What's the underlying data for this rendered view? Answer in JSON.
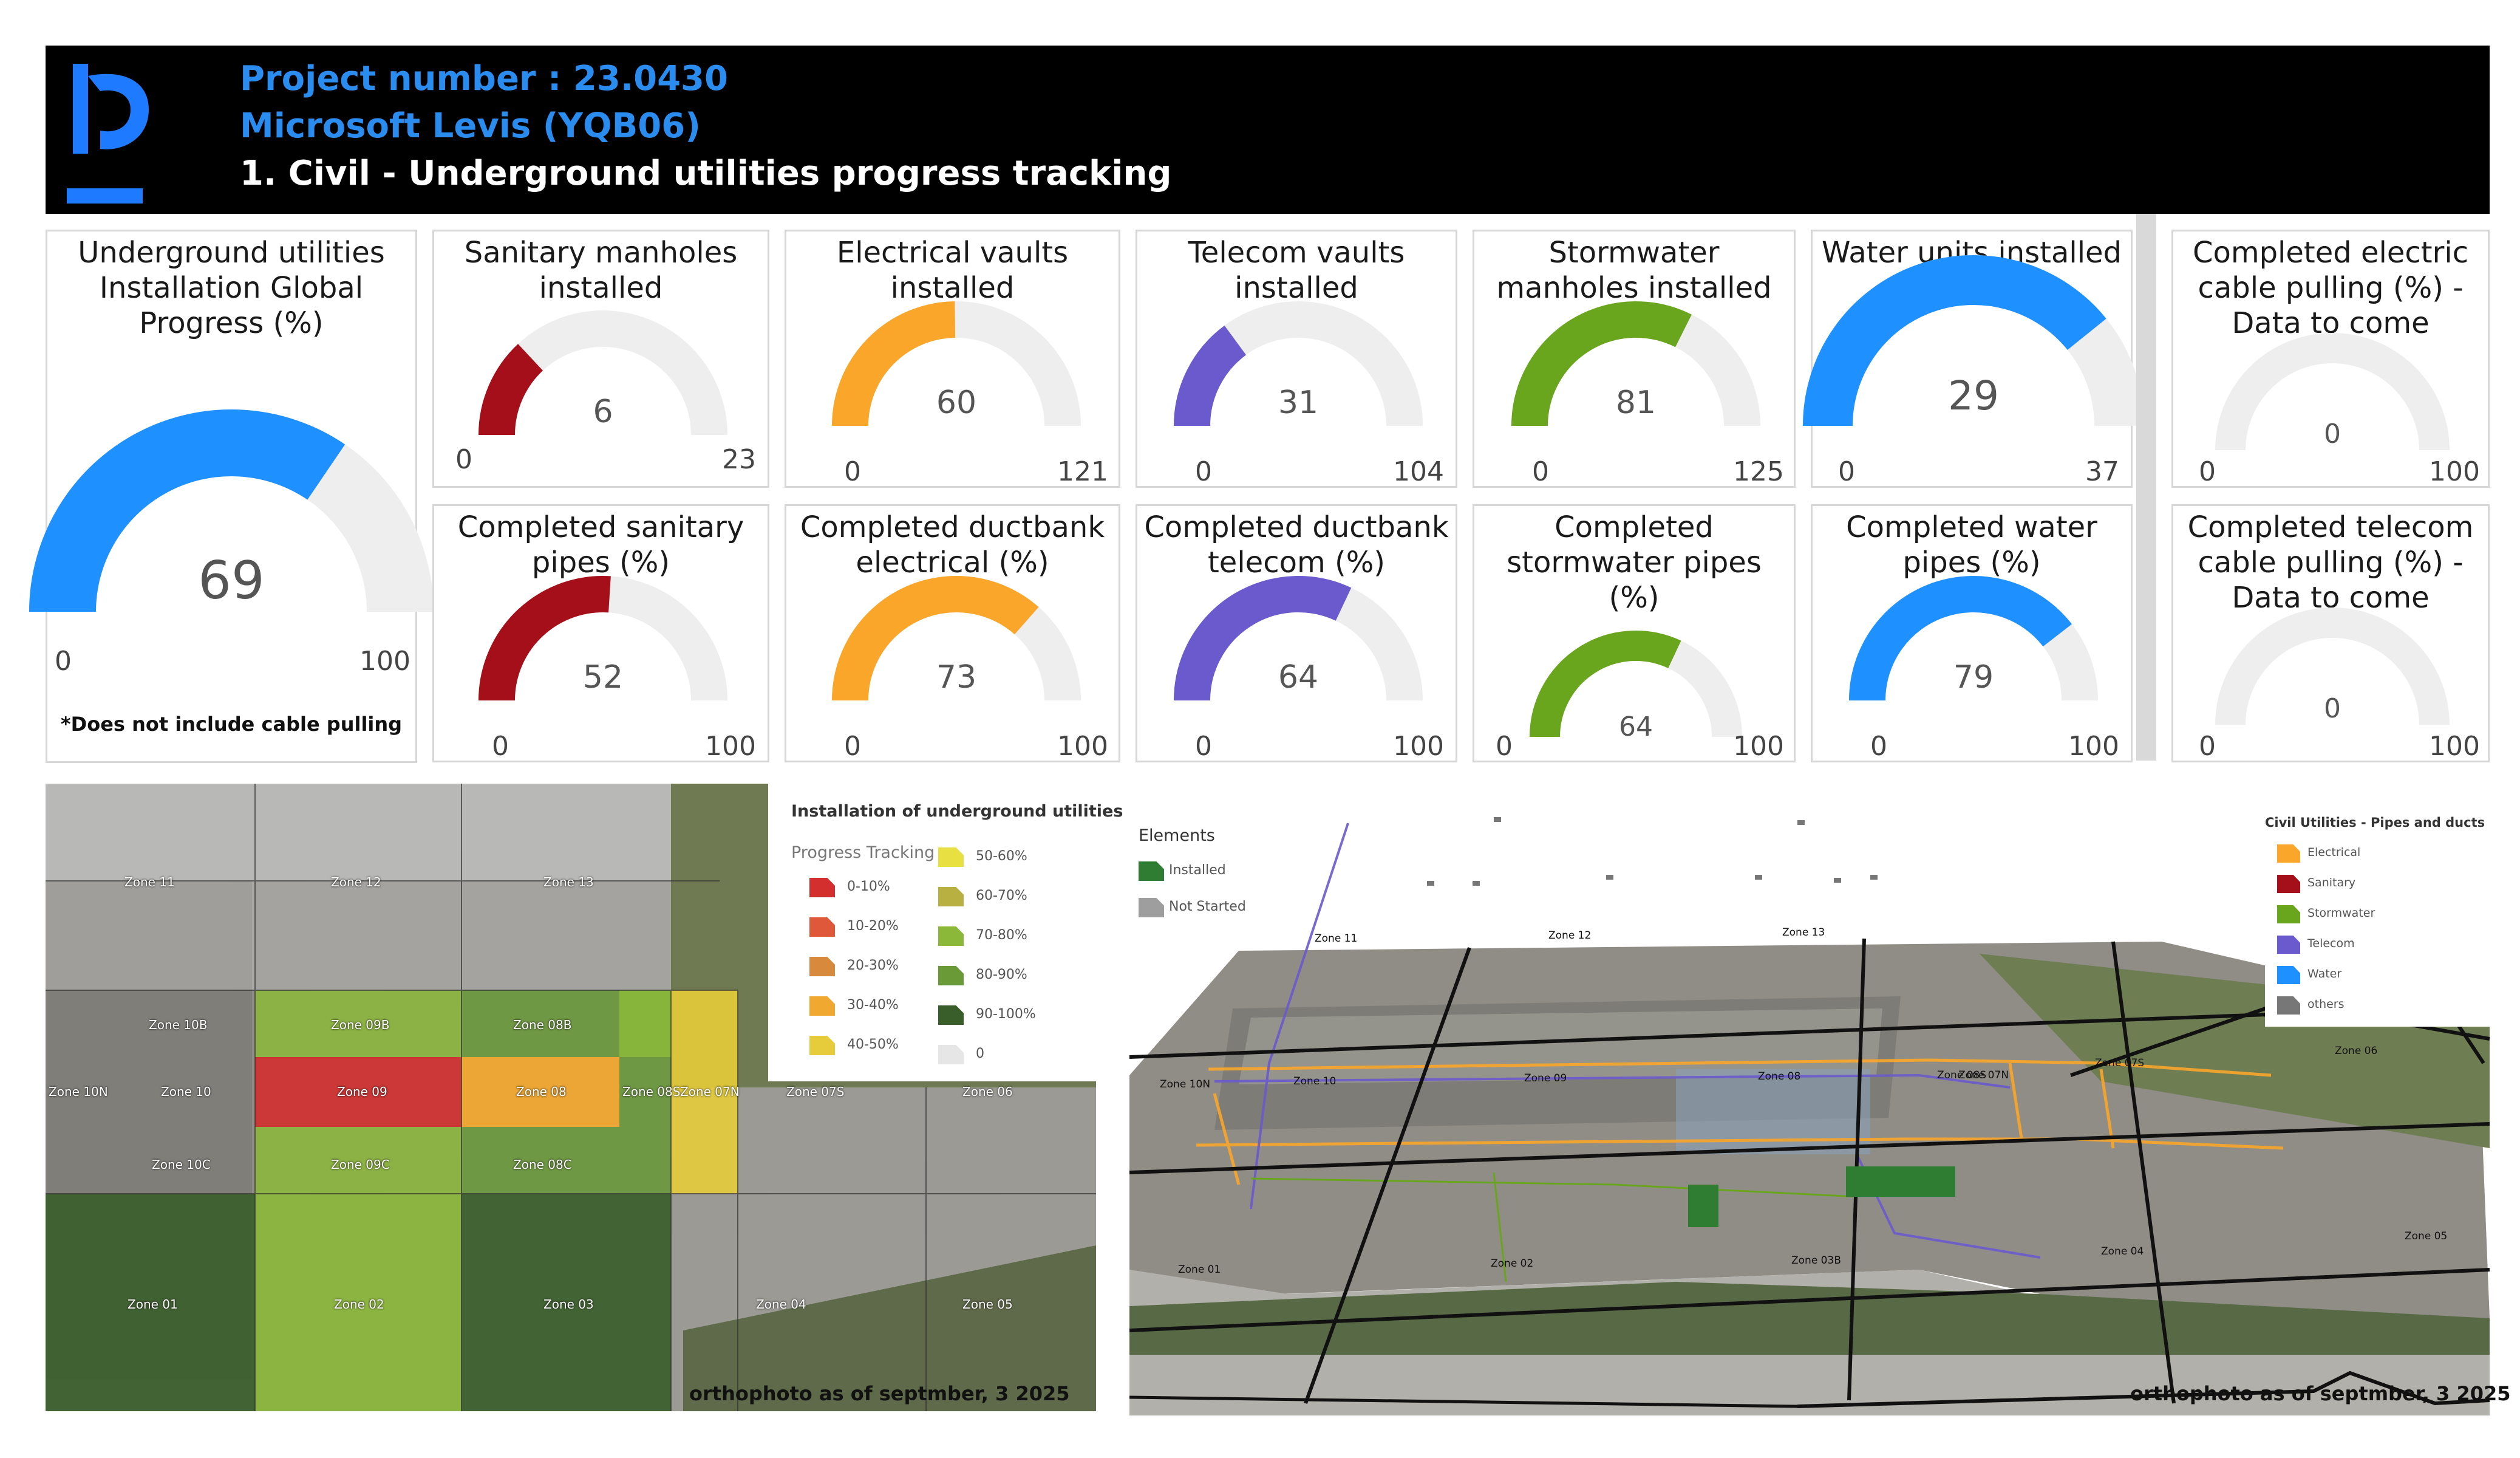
{
  "header": {
    "project_number": "Project number : 23.0430",
    "project_name": "Microsoft Levis (YQB06)",
    "page_title": "1. Civil - Underground utilities progress tracking"
  },
  "gauges": [
    {
      "title": "Underground utilities\nInstallation Global\nProgress (%)",
      "value": 69,
      "min": 0,
      "max": 100,
      "color": "#1e90ff",
      "note": "*Does not include cable pulling"
    },
    {
      "title": "Sanitary manholes\ninstalled",
      "value": 6,
      "min": 0,
      "max": 23,
      "color": "#a50f1a"
    },
    {
      "title": "Electrical vaults\ninstalled",
      "value": 60,
      "min": 0,
      "max": 121,
      "color": "#f9a62a"
    },
    {
      "title": "Telecom vaults\ninstalled",
      "value": 31,
      "min": 0,
      "max": 104,
      "color": "#6a5acd"
    },
    {
      "title": "Stormwater\nmanholes installed",
      "value": 81,
      "min": 0,
      "max": 125,
      "color": "#6aa51e"
    },
    {
      "title": "Water units installed",
      "value": 29,
      "min": 0,
      "max": 37,
      "color": "#1e90ff"
    },
    {
      "title": "Completed electric\ncable pulling (%) -\nData to come",
      "value": 0,
      "min": 0,
      "max": 100,
      "color": "#cccccc"
    },
    {
      "title": "Completed sanitary\npipes (%)",
      "value": 52,
      "min": 0,
      "max": 100,
      "color": "#a50f1a"
    },
    {
      "title": "Completed ductbank\nelectrical (%)",
      "value": 73,
      "min": 0,
      "max": 100,
      "color": "#f9a62a"
    },
    {
      "title": "Completed ductbank\ntelecom (%)",
      "value": 64,
      "min": 0,
      "max": 100,
      "color": "#6a5acd"
    },
    {
      "title": "Completed\nstormwater pipes\n(%)",
      "value": 64,
      "min": 0,
      "max": 100,
      "color": "#6aa51e"
    },
    {
      "title": "Completed water\npipes (%)",
      "value": 79,
      "min": 0,
      "max": 100,
      "color": "#1e90ff"
    },
    {
      "title": "Completed telecom\ncable pulling (%) -\nData to come",
      "value": 0,
      "min": 0,
      "max": 100,
      "color": "#cccccc"
    }
  ],
  "map_left": {
    "legend_title": "Installation of underground utilities",
    "legend_subtitle": "Progress Tracking",
    "legend_items": [
      {
        "label": "0-10%",
        "color": "#d32f2f"
      },
      {
        "label": "10-20%",
        "color": "#e0583a"
      },
      {
        "label": "20-30%",
        "color": "#d88a3c"
      },
      {
        "label": "30-40%",
        "color": "#f0a830"
      },
      {
        "label": "40-50%",
        "color": "#e6cc3a"
      },
      {
        "label": "50-60%",
        "color": "#e8e040"
      },
      {
        "label": "60-70%",
        "color": "#b8b040"
      },
      {
        "label": "70-80%",
        "color": "#8cb83a"
      },
      {
        "label": "80-90%",
        "color": "#6a9a38"
      },
      {
        "label": "90-100%",
        "color": "#3a5e2a"
      },
      {
        "label": "0",
        "color": "#e6e6e6"
      }
    ],
    "zones": [
      "Zone 11",
      "Zone 12",
      "Zone 13",
      "Zone 10B",
      "Zone 09B",
      "Zone 08B",
      "Zone 10N",
      "Zone 10",
      "Zone 09",
      "Zone 08",
      "Zone 08S",
      "Zone 07N",
      "Zone 07S",
      "Zone 06",
      "Zone 10C",
      "Zone 09C",
      "Zone 08C",
      "Zone 01",
      "Zone 02",
      "Zone 03",
      "Zone 04",
      "Zone 05"
    ],
    "caption": "orthophoto as of septmber, 3 2025"
  },
  "map_right": {
    "elements_title": "Elements",
    "elements": [
      {
        "label": "Installed",
        "color": "#2e7d32"
      },
      {
        "label": "Not Started",
        "color": "#9e9e9e"
      }
    ],
    "legend_title": "Civil Utilities - Pipes and ducts",
    "legend_items": [
      {
        "label": "Electrical",
        "color": "#f9a62a"
      },
      {
        "label": "Sanitary",
        "color": "#a50f1a"
      },
      {
        "label": "Stormwater",
        "color": "#6aa51e"
      },
      {
        "label": "Telecom",
        "color": "#6a5acd"
      },
      {
        "label": "Water",
        "color": "#1e90ff"
      },
      {
        "label": "others",
        "color": "#777777"
      }
    ],
    "zones": [
      "Zone 11",
      "Zone 12",
      "Zone 13",
      "Zone 10N",
      "Zone 10",
      "Zone 09",
      "Zone 08",
      "Zone 08S",
      "Zone 07N",
      "Zone 07S",
      "Zone 06",
      "Zone 01",
      "Zone 02",
      "Zone 03B",
      "Zone 04",
      "Zone 05"
    ],
    "caption": "orthophoto as of septmber, 3 2025"
  }
}
